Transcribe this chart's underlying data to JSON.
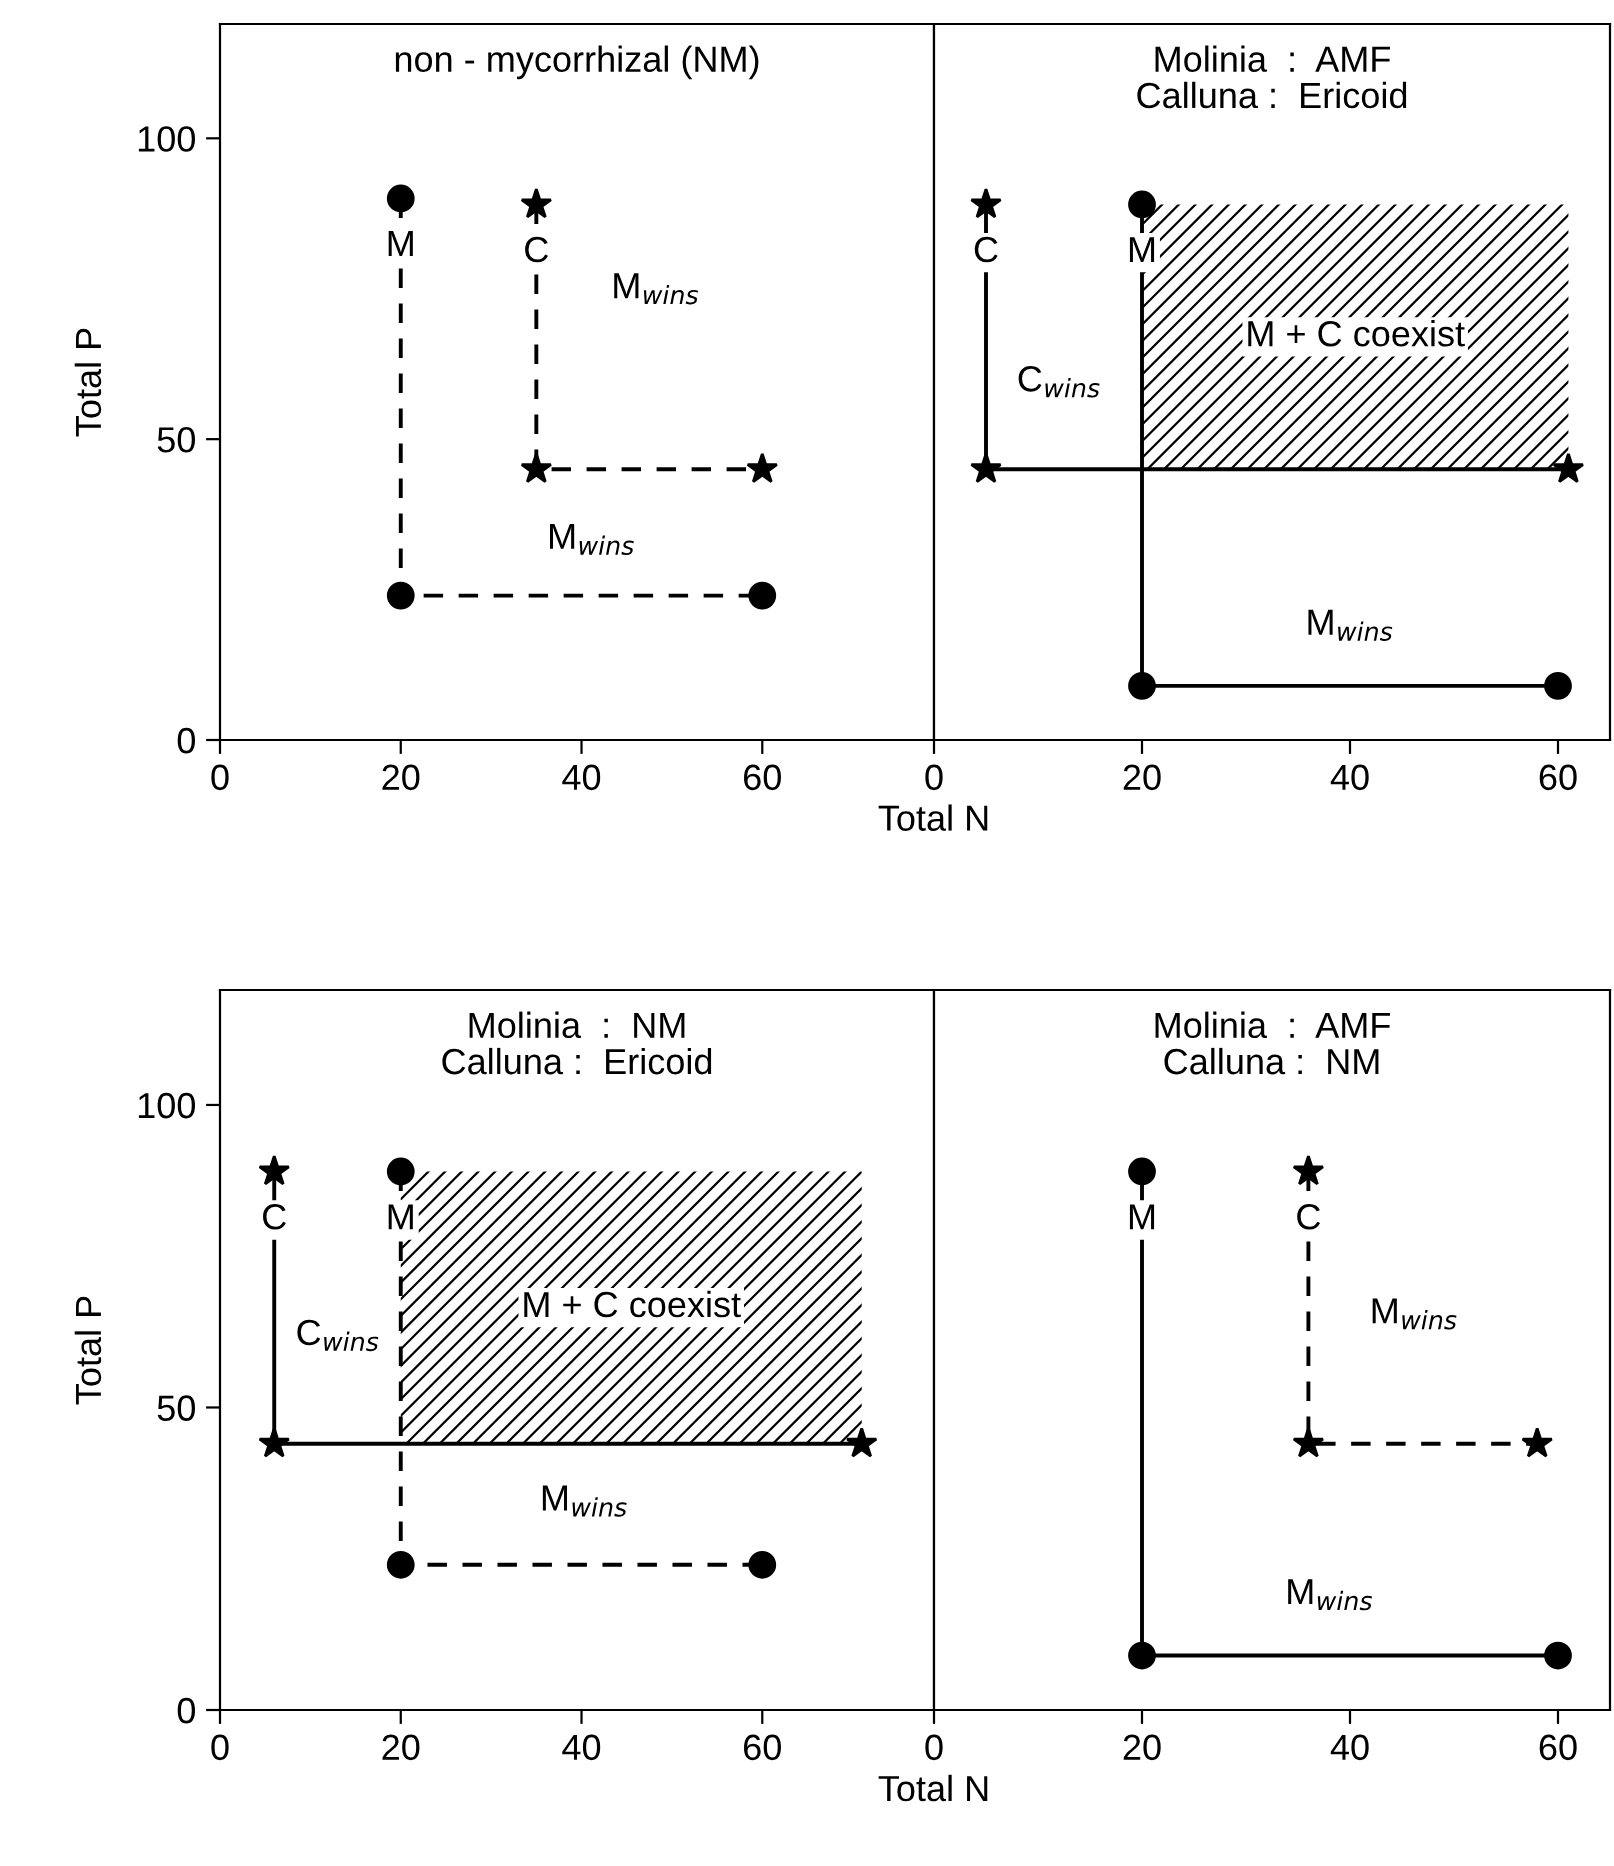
{
  "chart_data": [
    {
      "type": "line",
      "title": "non - mycorrhizal (NM)",
      "ylabel": "Total P",
      "xlim": [
        0,
        79
      ],
      "xticks": [
        0,
        20,
        40,
        60
      ],
      "ylim": [
        0,
        119
      ],
      "yticks": [
        0,
        50,
        100
      ],
      "grid": false,
      "legend": false,
      "series": [
        {
          "name": "M",
          "color": "#000000",
          "marker": "circle",
          "line_style": "dashed",
          "x": [
            20,
            20,
            60
          ],
          "values": [
            90,
            24,
            24
          ]
        },
        {
          "name": "C",
          "color": "#000000",
          "marker": "star",
          "line_style": "dashed",
          "x": [
            35,
            35,
            60
          ],
          "values": [
            89,
            45,
            45
          ]
        }
      ],
      "annotations": [
        "M$_{wins}$",
        "M$_{wins}$"
      ]
    },
    {
      "type": "line",
      "title": "Molinia  :  AMF\nCalluna :  Ericoid",
      "xlabel": "Total N",
      "xlim": [
        0,
        65
      ],
      "xticks": [
        0,
        20,
        40,
        60
      ],
      "ylim": [
        0,
        119
      ],
      "tick_labels": "x",
      "grid": false,
      "legend": false,
      "series": [
        {
          "name": "M",
          "color": "#000000",
          "marker": "circle",
          "line_style": "solid",
          "x": [
            20,
            20,
            60
          ],
          "values": [
            89,
            9,
            9
          ]
        },
        {
          "name": "C",
          "color": "#000000",
          "marker": "star",
          "line_style": "solid",
          "x": [
            5,
            5,
            61
          ],
          "values": [
            89,
            45,
            45
          ]
        }
      ],
      "bands": [
        {
          "axis": "x",
          "from": 20,
          "to": 61,
          "label": "M + C coexist",
          "color": "#000000"
        }
      ],
      "annotations": [
        "C$_{wins}$",
        "M$_{wins}$"
      ]
    },
    {
      "type": "line",
      "title": "Molinia  :  NM\nCalluna :  Ericoid",
      "ylabel": "Total P",
      "xlim": [
        0,
        79
      ],
      "xticks": [
        0,
        20,
        40,
        60
      ],
      "ylim": [
        0,
        119
      ],
      "yticks": [
        0,
        50,
        100
      ],
      "grid": false,
      "legend": false,
      "series": [
        {
          "name": "M",
          "color": "#000000",
          "marker": "circle",
          "line_style": "dashed",
          "x": [
            20,
            20,
            60
          ],
          "values": [
            89,
            24,
            24
          ]
        },
        {
          "name": "C",
          "color": "#000000",
          "marker": "star",
          "line_style": "solid",
          "x": [
            6,
            6,
            71
          ],
          "values": [
            89,
            44,
            44
          ]
        }
      ],
      "bands": [
        {
          "axis": "x",
          "from": 20,
          "to": 71,
          "label": "M + C coexist",
          "color": "#000000"
        }
      ],
      "annotations": [
        "C$_{wins}$",
        "M$_{wins}$"
      ]
    },
    {
      "type": "line",
      "title": "Molinia  :  AMF\nCalluna :  NM",
      "xlabel": "Total N",
      "xlim": [
        0,
        65
      ],
      "xticks": [
        0,
        20,
        40,
        60
      ],
      "ylim": [
        0,
        119
      ],
      "tick_labels": "x",
      "grid": false,
      "legend": false,
      "series": [
        {
          "name": "M",
          "color": "#000000",
          "marker": "circle",
          "line_style": "solid",
          "x": [
            20,
            20,
            60
          ],
          "values": [
            89,
            9,
            9
          ]
        },
        {
          "name": "C",
          "color": "#000000",
          "marker": "star",
          "line_style": "dashed",
          "x": [
            36,
            36,
            58
          ],
          "values": [
            89,
            44,
            44
          ]
        }
      ],
      "annotations": [
        "M$_{wins}$",
        "M$_{wins}$"
      ]
    }
  ]
}
